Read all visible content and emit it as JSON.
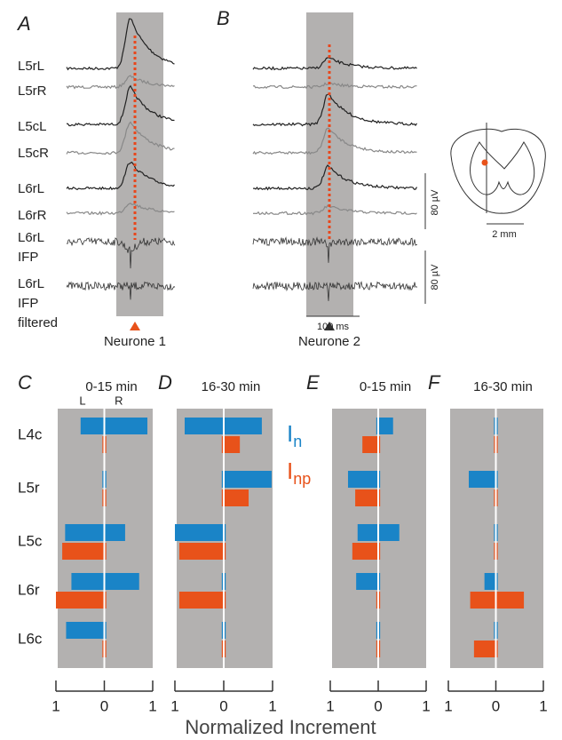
{
  "panel_a": {
    "label": "A",
    "arrow_label": "Neurone 1"
  },
  "panel_b": {
    "label": "B",
    "arrow_label": "Neurone 2"
  },
  "trace_labels": [
    [
      "L5rL"
    ],
    [
      "L5rR"
    ],
    [
      "L5cL"
    ],
    [
      "L5cR"
    ],
    [
      "L6rL"
    ],
    [
      "L6rR"
    ],
    [
      "L6rL",
      "IFP"
    ],
    [
      "L6rL",
      "IFP",
      "filtered"
    ]
  ],
  "scale_bars": {
    "voltage_1": "80 µV",
    "voltage_2": "80 µV",
    "time": "100 ms",
    "distance": "2 mm"
  },
  "legend": [
    {
      "main": "I",
      "sub": "n",
      "color": "#1a84c7"
    },
    {
      "main": "I",
      "sub": "np",
      "color": "#e8521a"
    }
  ],
  "x_axis_title": "Normalized Increment",
  "chart_data": [
    {
      "type": "bar",
      "label": "C",
      "title": "0-15 min",
      "side_labels": [
        "L",
        "R"
      ],
      "categories": [
        "L4c",
        "L5r",
        "L5c",
        "L6r",
        "L6c"
      ],
      "xlim": [
        -1,
        1
      ],
      "xticks": [
        {
          "value": -1,
          "label": "1"
        },
        0,
        1
      ],
      "series": [
        {
          "color": "#1a84c7",
          "left": [
            -0.49,
            -0.04,
            -0.81,
            -0.68,
            -0.79
          ],
          "right": [
            0.89,
            0.04,
            0.43,
            0.72,
            0.04
          ]
        },
        {
          "color": "#e8521a",
          "left": [
            -0.04,
            -0.04,
            -0.87,
            -1.0,
            -0.04
          ],
          "right": [
            0.04,
            0.04,
            0.04,
            0.04,
            0.04
          ]
        }
      ]
    },
    {
      "type": "bar",
      "label": "D",
      "title": "16-30 min",
      "xlim": [
        -1,
        1
      ],
      "xticks": [
        {
          "value": -1,
          "label": "1"
        },
        0,
        1
      ],
      "series": [
        {
          "color": "#1a84c7",
          "left": [
            -0.8,
            -0.04,
            -1.0,
            -0.04,
            -0.04
          ],
          "right": [
            0.78,
            0.98,
            0.04,
            0.04,
            0.04
          ]
        },
        {
          "color": "#e8521a",
          "left": [
            -0.04,
            -0.04,
            -0.91,
            -0.91,
            -0.04
          ],
          "right": [
            0.33,
            0.51,
            0.04,
            0.04,
            0.04
          ]
        }
      ]
    },
    {
      "type": "bar",
      "label": "E",
      "title": "0-15 min",
      "xlim": [
        -1,
        1
      ],
      "xticks": [
        {
          "value": -1,
          "label": "1"
        },
        0,
        1
      ],
      "series": [
        {
          "color": "#1a84c7",
          "left": [
            -0.04,
            -0.63,
            -0.43,
            -0.46,
            -0.04
          ],
          "right": [
            0.31,
            0.04,
            0.44,
            0.04,
            0.04
          ]
        },
        {
          "color": "#e8521a",
          "left": [
            -0.33,
            -0.48,
            -0.54,
            -0.04,
            -0.04
          ],
          "right": [
            0.04,
            0.04,
            0.04,
            0.04,
            0.04
          ]
        }
      ]
    },
    {
      "type": "bar",
      "label": "F",
      "title": "16-30 min",
      "xlim": [
        -1,
        1
      ],
      "xticks": [
        {
          "value": -1,
          "label": "1"
        },
        0,
        1
      ],
      "series": [
        {
          "color": "#1a84c7",
          "left": [
            -0.04,
            -0.57,
            -0.04,
            -0.24,
            -0.04
          ],
          "right": [
            0.04,
            0.04,
            0.04,
            0.04,
            0.04
          ]
        },
        {
          "color": "#e8521a",
          "left": [
            -0.04,
            -0.04,
            -0.04,
            -0.54,
            -0.46
          ],
          "right": [
            0.04,
            0.04,
            0.04,
            0.59,
            0.04
          ]
        }
      ]
    }
  ]
}
